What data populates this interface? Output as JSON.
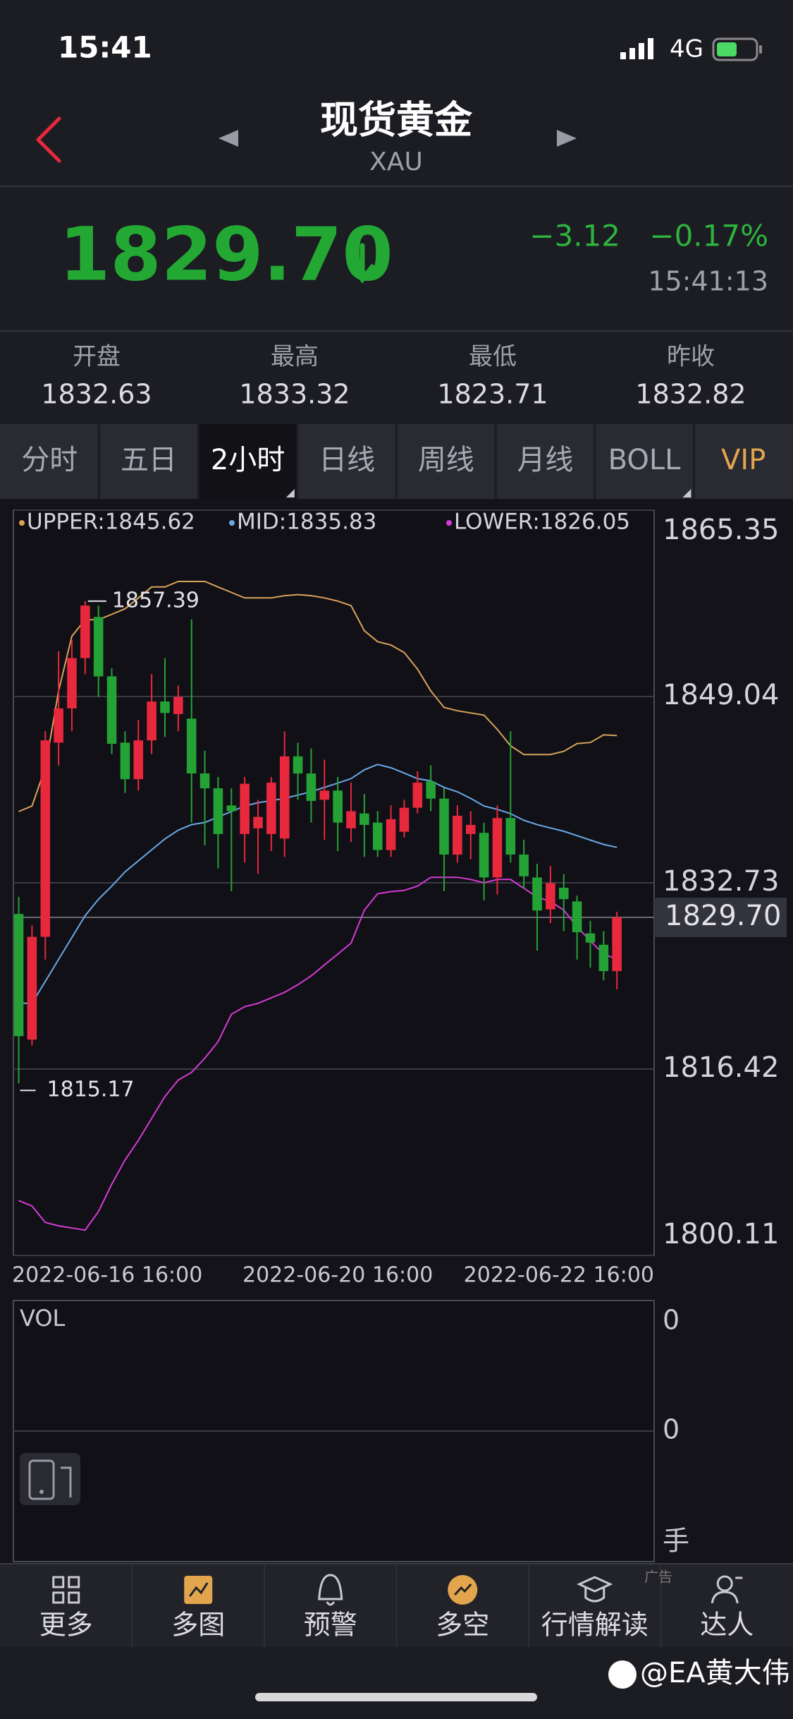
{
  "status_bar": {
    "time": "15:41",
    "network": "4G"
  },
  "header": {
    "title": "现货黄金",
    "subtitle": "XAU"
  },
  "quote": {
    "price": "1829.70",
    "change": "−3.12",
    "change_pct": "−0.17%",
    "time": "15:41:13"
  },
  "stats": [
    {
      "label": "开盘",
      "value": "1832.63"
    },
    {
      "label": "最高",
      "value": "1833.32"
    },
    {
      "label": "最低",
      "value": "1823.71"
    },
    {
      "label": "昨收",
      "value": "1832.82"
    }
  ],
  "tabs": [
    "分时",
    "五日",
    "2小时",
    "日线",
    "周线",
    "月线",
    "BOLL",
    "VIP"
  ],
  "chart_data": {
    "type": "candlestick",
    "categories": [
      "2022-06-16 16:00",
      null,
      null,
      null,
      null,
      null,
      null,
      null,
      null,
      null,
      null,
      null,
      null,
      null,
      null,
      null,
      null,
      null,
      null,
      null,
      null,
      null,
      null,
      null,
      "2022-06-20 16:00",
      null,
      null,
      null,
      null,
      null,
      null,
      null,
      null,
      null,
      null,
      null,
      null,
      null,
      null,
      null,
      null,
      null,
      null,
      null,
      null,
      "2022-06-22 16:00"
    ],
    "open": [
      1830.0,
      1819.0,
      1828.0,
      1845.0,
      1848.0,
      1852.4,
      1856.0,
      1850.8,
      1845.0,
      1841.8,
      1845.2,
      1848.6,
      1847.5,
      1847.1,
      1842.3,
      1841.0,
      1839.5,
      1837.0,
      1837.5,
      1837.0,
      1836.6,
      1843.8,
      1842.3,
      1840.0,
      1840.8,
      1837.5,
      1838.8,
      1838.0,
      1835.6,
      1837.2,
      1839.3,
      1841.6,
      1840.1,
      1835.2,
      1837.0,
      1837.1,
      1833.2,
      1838.4,
      1835.2,
      1833.2,
      1830.4,
      1832.3,
      1831.1,
      1828.3,
      1827.3,
      1825.0
    ],
    "high": [
      1831.5,
      1829.0,
      1846.0,
      1853.0,
      1854.0,
      1857.39,
      1857.0,
      1851.5,
      1846.0,
      1847.0,
      1851.0,
      1852.4,
      1850.0,
      1855.8,
      1844.3,
      1842.0,
      1841.0,
      1842.0,
      1840.0,
      1842.0,
      1846.0,
      1845.0,
      1844.5,
      1843.5,
      1842.0,
      1841.5,
      1840.5,
      1839.0,
      1839.5,
      1840.0,
      1842.5,
      1843.0,
      1841.0,
      1839.5,
      1839.0,
      1838.0,
      1839.5,
      1846.0,
      1836.5,
      1834.4,
      1834.2,
      1833.5,
      1831.6,
      1829.4,
      1828.5,
      1830.2
    ],
    "low": [
      1815.17,
      1818.5,
      1826.0,
      1843.0,
      1846.0,
      1851.0,
      1849.0,
      1844.0,
      1840.6,
      1840.8,
      1844.0,
      1845.5,
      1846.0,
      1838.0,
      1836.0,
      1834.0,
      1832.0,
      1834.5,
      1833.5,
      1835.5,
      1835.0,
      1840.0,
      1838.0,
      1836.5,
      1835.5,
      1836.3,
      1835.0,
      1835.0,
      1835.0,
      1836.7,
      1838.8,
      1839.0,
      1832.0,
      1834.5,
      1834.8,
      1831.2,
      1831.7,
      1834.5,
      1832.2,
      1826.8,
      1829.2,
      1828.5,
      1826.0,
      1825.3,
      1824.2,
      1823.4
    ],
    "close": [
      1819.3,
      1828.0,
      1845.2,
      1848.0,
      1852.4,
      1857.0,
      1850.8,
      1844.9,
      1841.8,
      1845.2,
      1848.6,
      1847.6,
      1849.0,
      1842.3,
      1841.0,
      1837.0,
      1839.0,
      1841.4,
      1838.5,
      1841.5,
      1843.8,
      1842.3,
      1839.9,
      1840.8,
      1838.0,
      1839.0,
      1837.8,
      1835.6,
      1838.3,
      1839.3,
      1841.5,
      1840.1,
      1835.2,
      1838.6,
      1837.8,
      1833.2,
      1838.4,
      1835.2,
      1833.3,
      1830.3,
      1832.7,
      1831.3,
      1828.4,
      1827.5,
      1825.0,
      1829.7
    ],
    "up_color": "#e8283c",
    "down_color": "#25a235",
    "series": [
      {
        "name": "UPPER:1845.62",
        "color": "#d9a35a",
        "values": [
          1838.97,
          1839.45,
          1842.8,
          1849.52,
          1854.32,
          1855.76,
          1855.76,
          1856.24,
          1856.72,
          1857.67,
          1858.63,
          1858.63,
          1859.11,
          1859.11,
          1859.11,
          1858.63,
          1858.15,
          1857.67,
          1857.67,
          1857.67,
          1857.87,
          1857.96,
          1857.87,
          1857.67,
          1857.39,
          1857.0,
          1854.8,
          1853.84,
          1853.55,
          1852.88,
          1851.44,
          1849.52,
          1848.08,
          1847.79,
          1847.6,
          1847.41,
          1846.16,
          1844.72,
          1843.96,
          1843.96,
          1843.96,
          1844.24,
          1844.92,
          1845.01,
          1845.68,
          1845.62
        ]
      },
      {
        "name": "MID:1835.83",
        "color": "#6aa9e8",
        "values": [
          1822.18,
          1822.18,
          1824.1,
          1826.02,
          1827.94,
          1829.85,
          1831.29,
          1832.44,
          1833.69,
          1834.65,
          1835.61,
          1836.57,
          1837.34,
          1837.82,
          1838.01,
          1838.49,
          1838.97,
          1839.45,
          1839.74,
          1839.93,
          1840.12,
          1840.41,
          1840.7,
          1841.08,
          1841.46,
          1841.85,
          1842.62,
          1843.09,
          1842.8,
          1842.33,
          1841.85,
          1841.65,
          1841.08,
          1840.7,
          1840.12,
          1839.45,
          1839.16,
          1838.78,
          1838.2,
          1837.82,
          1837.53,
          1837.24,
          1836.86,
          1836.47,
          1836.09,
          1835.83
        ]
      },
      {
        "name": "LOWER:1826.05",
        "color": "#d63ad6",
        "values": [
          1804.91,
          1804.43,
          1802.99,
          1802.7,
          1802.51,
          1802.32,
          1803.95,
          1806.35,
          1808.46,
          1810.18,
          1812.1,
          1814.02,
          1815.46,
          1816.13,
          1817.38,
          1818.82,
          1821.22,
          1821.89,
          1822.18,
          1822.66,
          1823.14,
          1823.81,
          1824.58,
          1825.54,
          1826.49,
          1827.45,
          1830.33,
          1831.77,
          1831.96,
          1832.06,
          1832.44,
          1833.21,
          1833.21,
          1833.21,
          1833.02,
          1832.73,
          1833.02,
          1833.02,
          1832.25,
          1831.48,
          1831.1,
          1830.33,
          1828.89,
          1827.64,
          1826.49,
          1826.05
        ]
      }
    ],
    "last_price": {
      "value": 1829.7,
      "label": "1829.70"
    },
    "ylim": [
      1800.11,
      1865.35
    ],
    "yticks": [
      1865.35,
      1849.04,
      1832.73,
      1816.42,
      1800.11
    ],
    "grid": true
  },
  "volume_panel": {
    "title": "VOL",
    "yticks": [
      "0",
      "0"
    ],
    "unit": "手"
  },
  "nav": [
    "更多",
    "多图",
    "预警",
    "多空",
    "行情解读",
    "达人"
  ],
  "ad_tag": "广告",
  "watermark": "@EA黄大伟"
}
